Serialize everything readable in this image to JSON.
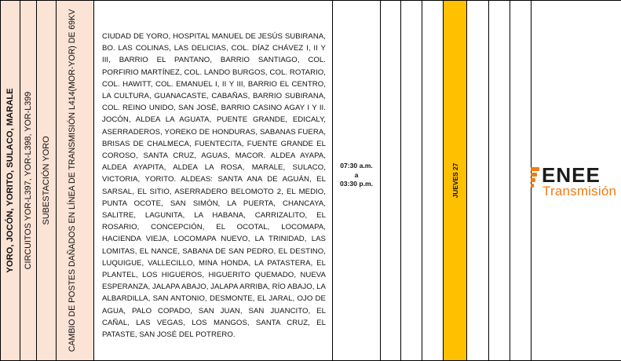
{
  "row": {
    "zone": "YORO, JOCÓN, YORITO, SULACO, MARALE",
    "circuits": "CIRCUITOS YOR-L397, YOR-L398, YOR-L399",
    "substation": "SUBESTACIÓN YORO",
    "work": "CAMBIO DE POSTES DAÑADOS EN LÍNEA DE TRANSMISIÓN L414(MOR-YOR) DE 69KV",
    "areas": "CIUDAD DE YORO, HOSPITAL MANUEL DE JESÚS SUBIRANA, BO. LAS COLINAS, LAS DELICIAS, COL. DÍAZ CHÁVEZ I, II Y III, BARRIO EL PANTANO, BARRIO SANTIAGO, COL. PORFIRIO MARTÍNEZ, COL. LANDO BURGOS, COL. ROTARIO, COL. HAWITT, COL. EMANUEL I, II Y III, BARRIO EL CENTRO, LA CULTURA, GUANACASTE, CABAÑAS, BARRIO SUBIRANA, COL. REINO UNIDO, SAN JOSÉ, BARRIO CASINO AGAY I Y II. JOCÓN, ALDEA LA AGUATA, PUENTE GRANDE, EDICALY, ASERRADEROS, YOREKO DE HONDURAS, SABANAS FUERA, BRISAS DE CHALMECA, FUENTECITA, FUENTE GRANDE EL COROSO, SANTA CRUZ, AGUAS, MACOR. ALDEA AYAPA, ALDEA AYAPITA, ALDEA LA ROSA, MARALE, SULACO, VICTORIA, YORITO. ALDEAS: SANTA ANA DE AGUÁN, EL SARSAL, EL SITIO, ASERRADERO BELOMOTO 2, EL MEDIO, PUNTA OCOTE, SAN SIMÓN, LA PUERTA, CHANCAYA, SALITRE, LAGUNITA, LA HABANA, CARRIZALITO, EL ROSARIO, CONCEPCIÓN, EL OCOTAL, LOCOMAPA, HACIENDA VIEJA, LOCOMAPA NUEVO, LA TRINIDAD, LAS LOMITAS, EL NANCE, SABANA DE SAN PEDRO, EL DESTINO, LUQUIGUE, VALLECILLO, MINA HONDA, LA PATASTERA, EL PLANTEL, LOS HIGUEROS, HIGUERITO QUEMADO, NUEVA ESPERANZA, JALAPA ABAJO, JALAPA ARRIBA, RÍO ABAJO, LA ALBARDILLA, SAN ANTONIO, DESMONTE, EL JARAL, OJO DE AGUA, PALO COPADO, SAN JUAN, SAN JUANCITO, EL CAÑAL, LAS VEGAS, LOS MANGOS, SANTA CRUZ, EL PATASTE, SAN JOSÉ DEL POTRERO.",
    "time_start": "07:30 a.m.",
    "time_sep": "a",
    "time_end": "03:30 p.m.",
    "day": "JUEVES 27"
  },
  "logo": {
    "name": "ENEE",
    "subtitle": "Transmisión"
  },
  "colors": {
    "peach": "#fbe3d6",
    "highlight": "#ffc000",
    "brand_orange": "#f07c14",
    "border": "#000000"
  }
}
